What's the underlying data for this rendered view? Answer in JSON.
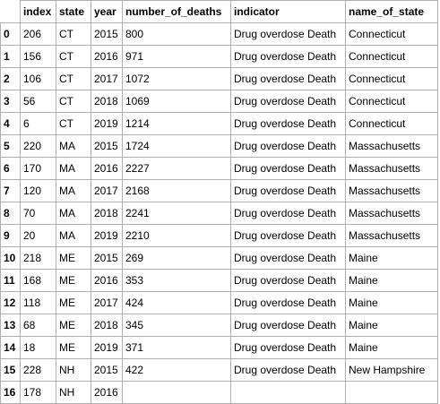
{
  "table": {
    "columns": [
      "index",
      "state",
      "year",
      "number_of_deaths",
      "indicator",
      "name_of_state"
    ],
    "rows": [
      {
        "idx": "0",
        "cells": [
          "206",
          "CT",
          "2015",
          "800",
          "Drug overdose Death",
          "Connecticut"
        ]
      },
      {
        "idx": "1",
        "cells": [
          "156",
          "CT",
          "2016",
          "971",
          "Drug overdose Death",
          "Connecticut"
        ]
      },
      {
        "idx": "2",
        "cells": [
          "106",
          "CT",
          "2017",
          "1072",
          "Drug overdose Death",
          "Connecticut"
        ]
      },
      {
        "idx": "3",
        "cells": [
          "56",
          "CT",
          "2018",
          "1069",
          "Drug overdose Death",
          "Connecticut"
        ]
      },
      {
        "idx": "4",
        "cells": [
          "6",
          "CT",
          "2019",
          "1214",
          "Drug overdose Death",
          "Connecticut"
        ]
      },
      {
        "idx": "5",
        "cells": [
          "220",
          "MA",
          "2015",
          "1724",
          "Drug overdose Death",
          "Massachusetts"
        ]
      },
      {
        "idx": "6",
        "cells": [
          "170",
          "MA",
          "2016",
          "2227",
          "Drug overdose Death",
          "Massachusetts"
        ]
      },
      {
        "idx": "7",
        "cells": [
          "120",
          "MA",
          "2017",
          "2168",
          "Drug overdose Death",
          "Massachusetts"
        ]
      },
      {
        "idx": "8",
        "cells": [
          "70",
          "MA",
          "2018",
          "2241",
          "Drug overdose Death",
          "Massachusetts"
        ]
      },
      {
        "idx": "9",
        "cells": [
          "20",
          "MA",
          "2019",
          "2210",
          "Drug overdose Death",
          "Massachusetts"
        ]
      },
      {
        "idx": "10",
        "cells": [
          "218",
          "ME",
          "2015",
          "269",
          "Drug overdose Death",
          "Maine"
        ]
      },
      {
        "idx": "11",
        "cells": [
          "168",
          "ME",
          "2016",
          "353",
          "Drug overdose Death",
          "Maine"
        ]
      },
      {
        "idx": "12",
        "cells": [
          "118",
          "ME",
          "2017",
          "424",
          "Drug overdose Death",
          "Maine"
        ]
      },
      {
        "idx": "13",
        "cells": [
          "68",
          "ME",
          "2018",
          "345",
          "Drug overdose Death",
          "Maine"
        ]
      },
      {
        "idx": "14",
        "cells": [
          "18",
          "ME",
          "2019",
          "371",
          "Drug overdose Death",
          "Maine"
        ]
      },
      {
        "idx": "15",
        "cells": [
          "228",
          "NH",
          "2015",
          "422",
          "Drug overdose Death",
          "New Hampshire"
        ]
      },
      {
        "idx": "16",
        "cells": [
          "178",
          "NH",
          "2016",
          "",
          "",
          ""
        ]
      }
    ]
  }
}
